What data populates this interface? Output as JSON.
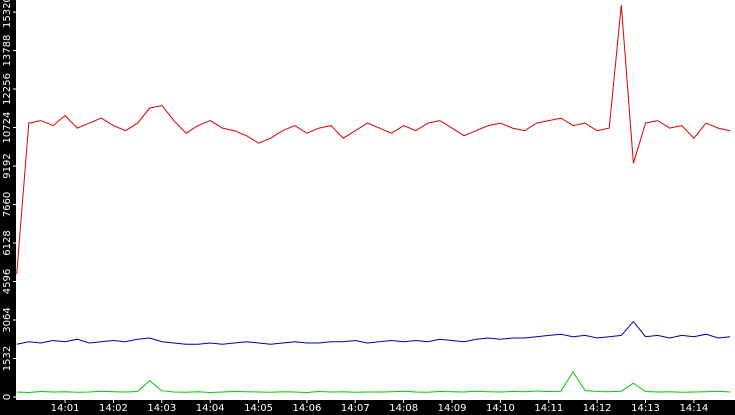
{
  "chart_data": {
    "type": "line",
    "ylim": [
      0,
      15800
    ],
    "yticks": [
      0,
      1532,
      3064,
      4596,
      6128,
      7660,
      9192,
      10724,
      12256,
      13788,
      15320
    ],
    "xlim": [
      0,
      59.4
    ],
    "xticks": [
      {
        "value": 4,
        "label": "14:01"
      },
      {
        "value": 8,
        "label": "14:02"
      },
      {
        "value": 12,
        "label": "14:03"
      },
      {
        "value": 16,
        "label": "14:04"
      },
      {
        "value": 20,
        "label": "14:05"
      },
      {
        "value": 24,
        "label": "14:06"
      },
      {
        "value": 28,
        "label": "14:07"
      },
      {
        "value": 32,
        "label": "14:08"
      },
      {
        "value": 36,
        "label": "14:09"
      },
      {
        "value": 40,
        "label": "14:10"
      },
      {
        "value": 44,
        "label": "14:11"
      },
      {
        "value": 48,
        "label": "14:12"
      },
      {
        "value": 52,
        "label": "14:13"
      },
      {
        "value": 56,
        "label": "14:14"
      }
    ],
    "series": [
      {
        "color": "#dd0000",
        "values": [
          4900,
          10900,
          11000,
          10800,
          11200,
          10700,
          10900,
          11100,
          10800,
          10600,
          10900,
          11500,
          11600,
          11000,
          10500,
          10800,
          11000,
          10700,
          10600,
          10400,
          10100,
          10300,
          10600,
          10800,
          10500,
          10700,
          10800,
          10300,
          10600,
          10900,
          10700,
          10500,
          10800,
          10600,
          10900,
          11000,
          10700,
          10400,
          10600,
          10800,
          10900,
          10700,
          10600,
          10900,
          11000,
          11100,
          10800,
          10900,
          10600,
          10700,
          15600,
          9300,
          10900,
          11000,
          10700,
          10800,
          10300,
          10900,
          10700,
          10600
        ]
      },
      {
        "color": "#0000aa",
        "values": [
          2100,
          2200,
          2150,
          2250,
          2200,
          2300,
          2150,
          2200,
          2250,
          2200,
          2300,
          2350,
          2200,
          2150,
          2100,
          2100,
          2150,
          2100,
          2150,
          2200,
          2150,
          2100,
          2150,
          2200,
          2150,
          2150,
          2200,
          2200,
          2250,
          2150,
          2200,
          2250,
          2200,
          2250,
          2200,
          2300,
          2250,
          2200,
          2300,
          2350,
          2300,
          2350,
          2350,
          2400,
          2450,
          2500,
          2400,
          2450,
          2350,
          2400,
          2450,
          3000,
          2400,
          2450,
          2350,
          2450,
          2400,
          2500,
          2350,
          2400
        ]
      },
      {
        "color": "#00cc00",
        "values": [
          200,
          180,
          220,
          200,
          210,
          190,
          200,
          230,
          210,
          200,
          220,
          650,
          250,
          200,
          190,
          210,
          180,
          200,
          220,
          210,
          200,
          190,
          210,
          200,
          180,
          220,
          200,
          210,
          190,
          200,
          200,
          210,
          230,
          200,
          190,
          220,
          210,
          200,
          230,
          210,
          200,
          220,
          210,
          240,
          220,
          230,
          1000,
          260,
          220,
          210,
          230,
          550,
          220,
          200,
          210,
          190,
          200,
          210,
          230,
          200
        ]
      }
    ]
  }
}
